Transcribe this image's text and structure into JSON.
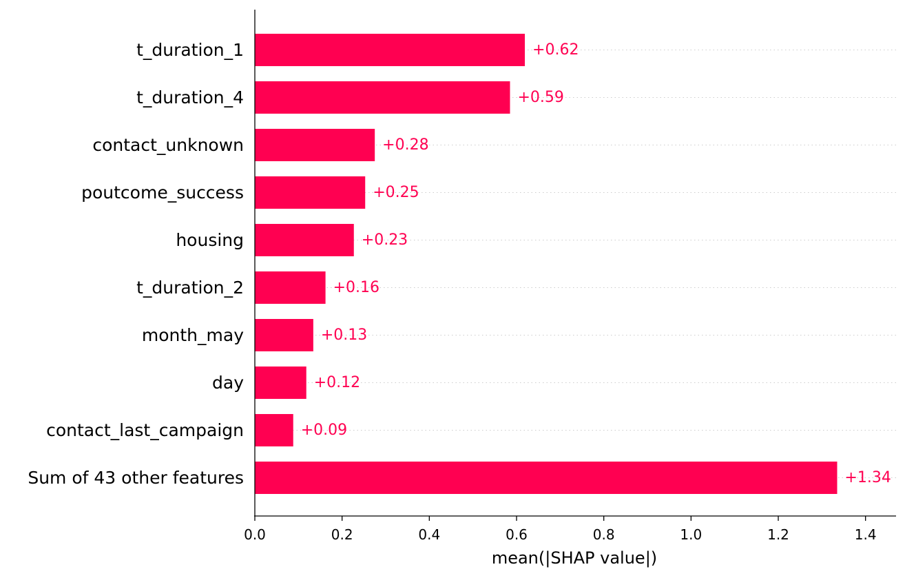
{
  "chart_data": {
    "type": "bar",
    "orientation": "horizontal",
    "categories": [
      "t_duration_1",
      "t_duration_4",
      "contact_unknown",
      "poutcome_success",
      "housing",
      "t_duration_2",
      "month_may",
      "day",
      "contact_last_campaign",
      "Sum of 43 other features"
    ],
    "values": [
      0.619,
      0.585,
      0.275,
      0.253,
      0.227,
      0.162,
      0.134,
      0.118,
      0.088,
      1.335
    ],
    "value_labels": [
      "+0.62",
      "+0.59",
      "+0.28",
      "+0.25",
      "+0.23",
      "+0.16",
      "+0.13",
      "+0.12",
      "+0.09",
      "+1.34"
    ],
    "xlabel": "mean(|SHAP value|)",
    "ylabel": "",
    "title": "",
    "xlim": [
      0,
      1.47
    ],
    "xticks": [
      0.0,
      0.2,
      0.4,
      0.6,
      0.8,
      1.0,
      1.2,
      1.4
    ],
    "xtick_labels": [
      "0.0",
      "0.2",
      "0.4",
      "0.6",
      "0.8",
      "1.0",
      "1.2",
      "1.4"
    ],
    "grid": "dotted row guide lines",
    "legend": "none",
    "colors": {
      "bar": "#ff0051",
      "value_label": "#ff0051",
      "axis": "#000000",
      "guide_line": "#cccccc"
    }
  }
}
